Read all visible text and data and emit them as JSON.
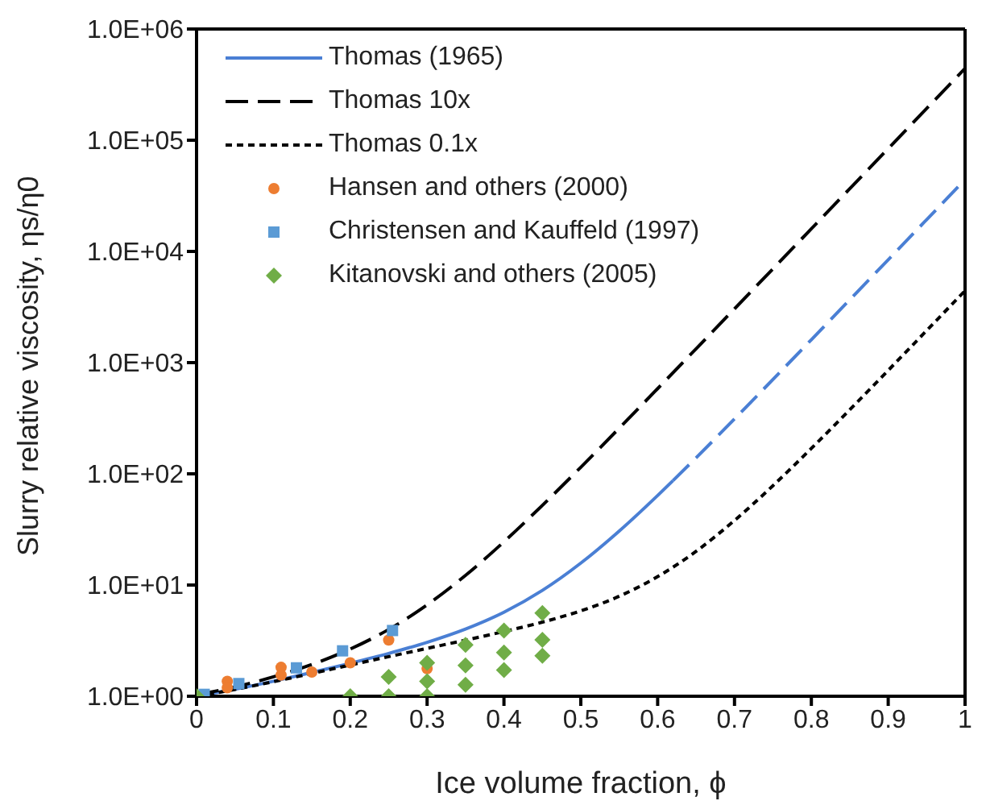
{
  "chart_data": {
    "type": "line",
    "xlabel": "Ice volume fraction, ϕ",
    "ylabel": "Slurry relative viscosity, ηs/η0",
    "log": "y",
    "xlim": [
      0,
      1
    ],
    "xticks": [
      0,
      0.1,
      0.2,
      0.3,
      0.4,
      0.5,
      0.6,
      0.7,
      0.8,
      0.9,
      1
    ],
    "ylim": [
      1,
      1000000
    ],
    "yticks": [
      {
        "value": 1,
        "label": "1.0E+00"
      },
      {
        "value": 10,
        "label": "1.0E+01"
      },
      {
        "value": 100,
        "label": "1.0E+02"
      },
      {
        "value": 1000,
        "label": "1.0E+03"
      },
      {
        "value": 10000,
        "label": "1.0E+04"
      },
      {
        "value": 100000,
        "label": "1.0E+05"
      },
      {
        "value": 1000000,
        "label": "1.0E+06"
      }
    ],
    "grid": false,
    "legend": "top left",
    "series": [
      {
        "name": "Thomas (1965)",
        "color": "#4a7fd4",
        "line_style": "solid",
        "marker": "none",
        "x": [
          0,
          0.05,
          0.1,
          0.15,
          0.2,
          0.25,
          0.3,
          0.35,
          0.4,
          0.45,
          0.5,
          0.55,
          0.6,
          0.62
        ],
        "values": [
          1.003,
          1.156,
          1.365,
          1.634,
          1.978,
          2.426,
          3.052,
          4.017,
          5.697,
          8.95,
          15.75,
          30.6,
          63.9,
          86.9
        ]
      },
      {
        "color": "#4a7fd4",
        "line_style": "dashed",
        "marker": "none",
        "x": [
          0.62,
          0.65,
          0.7,
          0.75,
          0.8,
          0.85,
          0.9,
          0.95,
          1
        ],
        "values": [
          86.9,
          139.4,
          311.6,
          705.5,
          1608,
          3677,
          8420,
          19297,
          44240
        ]
      },
      {
        "name": "Thomas 10x",
        "color": "#000000",
        "line_style": "dashed",
        "marker": "none",
        "x": [
          0,
          0.05,
          0.1,
          0.15,
          0.2,
          0.25,
          0.3,
          0.35,
          0.4,
          0.45,
          0.5,
          0.55,
          0.6,
          0.65,
          0.7,
          0.75,
          0.8,
          0.85,
          0.9,
          0.95,
          1
        ],
        "values": [
          1.027,
          1.213,
          1.494,
          1.93,
          2.657,
          3.985,
          6.63,
          12.22,
          24.49,
          52.1,
          114.6,
          257.3,
          584,
          1332,
          3047,
          6978,
          15994,
          36670,
          84100,
          192900,
          442300
        ]
      },
      {
        "name": "Thomas 0.1x",
        "color": "#000000",
        "line_style": "dotted",
        "marker": "none",
        "x": [
          0,
          0.05,
          0.1,
          0.15,
          0.2,
          0.25,
          0.3,
          0.35,
          0.4,
          0.45,
          0.5,
          0.55,
          0.6,
          0.65,
          0.7,
          0.75,
          0.8,
          0.85,
          0.9,
          0.95,
          1
        ],
        "values": [
          1.0003,
          1.151,
          1.352,
          1.604,
          1.91,
          2.27,
          2.694,
          3.197,
          3.817,
          4.64,
          5.86,
          7.93,
          11.9,
          20.1,
          38.1,
          78.2,
          169.3,
          377,
          852,
          1941,
          4436
        ]
      },
      {
        "name": "Hansen and others (2000)",
        "type": "scatter",
        "color": "#ed7d31",
        "marker": "circle",
        "x": [
          0.04,
          0.04,
          0.11,
          0.11,
          0.15,
          0.2,
          0.25,
          0.3
        ],
        "values": [
          1.36,
          1.19,
          1.82,
          1.55,
          1.65,
          2.0,
          3.2,
          1.77
        ]
      },
      {
        "name": "Christensen and Kauffeld (1997)",
        "type": "scatter",
        "color": "#5b9bd5",
        "marker": "square",
        "x": [
          0.01,
          0.055,
          0.13,
          0.19,
          0.255
        ],
        "values": [
          1.04,
          1.3,
          1.8,
          2.56,
          3.9
        ]
      },
      {
        "name": "Kitanovski and others (2005)",
        "type": "scatter",
        "color": "#70ad47",
        "marker": "diamond",
        "x": [
          0,
          0.2,
          0.25,
          0.25,
          0.3,
          0.3,
          0.3,
          0.35,
          0.35,
          0.35,
          0.4,
          0.4,
          0.4,
          0.45,
          0.45,
          0.45
        ],
        "values": [
          1.0,
          1.0,
          1.0,
          1.49,
          1.0,
          1.36,
          2.0,
          1.27,
          1.89,
          2.9,
          1.72,
          2.47,
          3.9,
          2.31,
          3.21,
          5.6
        ]
      }
    ]
  }
}
